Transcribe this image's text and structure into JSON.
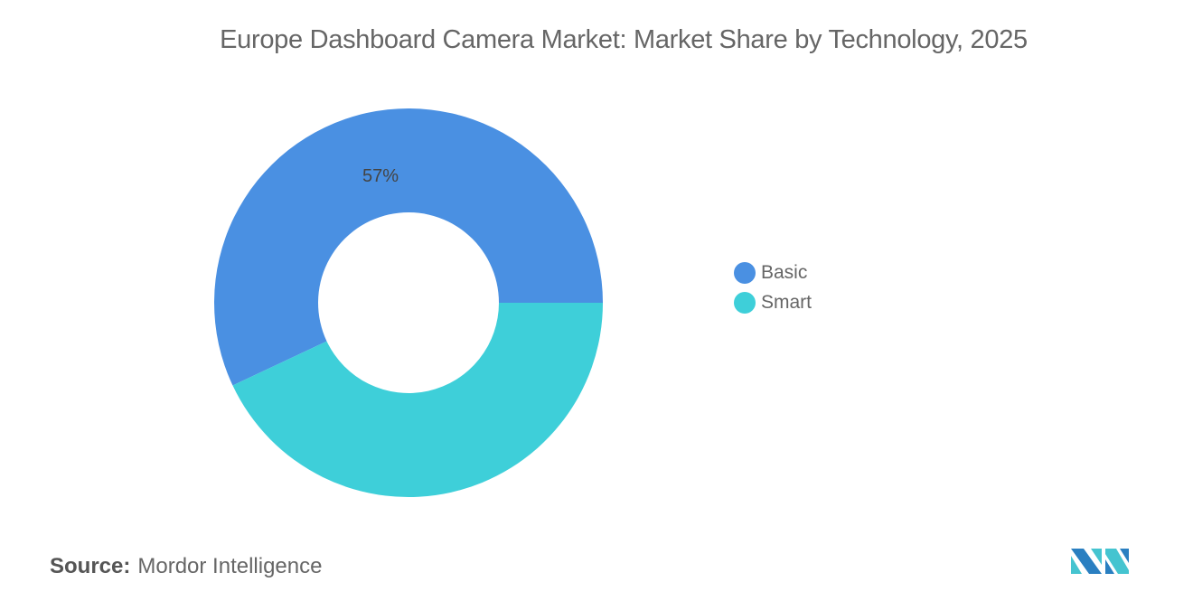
{
  "chart_data": {
    "type": "pie",
    "variant": "donut",
    "title": "Europe Dashboard Camera Market: Market Share by Technology, 2025",
    "categories": [
      "Basic",
      "Smart"
    ],
    "values": [
      57,
      43
    ],
    "unit": "%",
    "data_labels": [
      "57%",
      ""
    ],
    "colors": [
      "#4a90e2",
      "#3ecfd9"
    ],
    "legend": {
      "placement": "right",
      "entries": [
        "Basic",
        "Smart"
      ]
    }
  },
  "source": {
    "label": "Source:",
    "value": "Mordor Intelligence"
  },
  "logo": {
    "text": "Mordor Intelligence",
    "colors": [
      "#2a7fc1",
      "#45c4d0"
    ]
  }
}
